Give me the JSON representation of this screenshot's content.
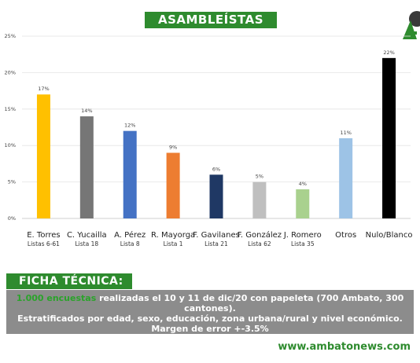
{
  "header": {
    "title": "ASAMBLEÍSTAS"
  },
  "chart_data": {
    "type": "bar",
    "title": "",
    "xlabel": "",
    "ylabel": "",
    "ylim": [
      0,
      25
    ],
    "yticks": [
      "0%",
      "5%",
      "10%",
      "15%",
      "20%",
      "25%"
    ],
    "grid": true,
    "categories": [
      {
        "name": "E. Torres",
        "sub": "Listas 6-61",
        "value": 17,
        "label": "17%",
        "color": "#ffc000"
      },
      {
        "name": "C. Yucailla",
        "sub": "Lista 18",
        "value": 14,
        "label": "14%",
        "color": "#767676"
      },
      {
        "name": "A. Pérez",
        "sub": "Lista 8",
        "value": 12,
        "label": "12%",
        "color": "#4472c4"
      },
      {
        "name": "R. Mayorga",
        "sub": "Lista 1",
        "value": 9,
        "label": "9%",
        "color": "#ed7d31"
      },
      {
        "name": "F. Gavilanes",
        "sub": "Lista 21",
        "value": 6,
        "label": "6%",
        "color": "#1f3864"
      },
      {
        "name": "F. González",
        "sub": "Lista 62",
        "value": 5,
        "label": "5%",
        "color": "#bfbfbf"
      },
      {
        "name": "J. Romero",
        "sub": "Lista 35",
        "value": 4,
        "label": "4%",
        "color": "#a9d18e"
      },
      {
        "name": "Otros",
        "sub": "",
        "value": 11,
        "label": "11%",
        "color": "#9dc3e6"
      },
      {
        "name": "Nulo/Blanco",
        "sub": "",
        "value": 22,
        "label": "22%",
        "color": "#000000"
      }
    ]
  },
  "ficha": {
    "heading": "FICHA TÉCNICA:",
    "highlight": "1.000 encuestas",
    "line1_rest": " realizadas el 10 y 11 de dic/20 con papeleta (700 Ambato, 300 cantones).",
    "line2": "Estratificados por edad, sexo, educación, zona urbana/rural y nivel económico.",
    "line3": "Margen de error +-3.5%"
  },
  "footer": {
    "website": "www.ambatonews.com"
  },
  "colors": {
    "brand_green": "#2e8b2e",
    "ficha_box": "#8c8c8c"
  }
}
